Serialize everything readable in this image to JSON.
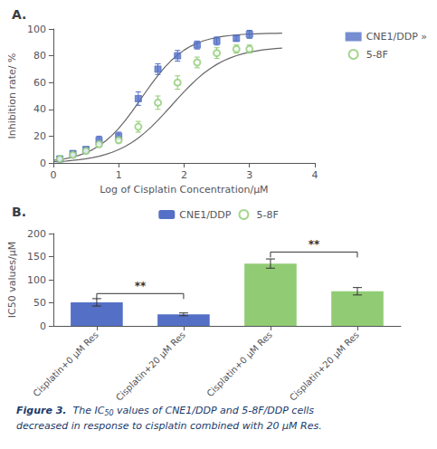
{
  "chart_data": [
    {
      "type": "scatter",
      "title": "A.",
      "xlabel": "Log of Cisplatin Concentration/μM",
      "ylabel": "Inhibition rate/ %",
      "xlim": [
        0,
        4
      ],
      "ylim": [
        0,
        100
      ],
      "xticks": [
        0,
        1,
        2,
        3,
        4
      ],
      "yticks": [
        0,
        20,
        40,
        60,
        80,
        100
      ],
      "grid": false,
      "legend": "right",
      "series": [
        {
          "name": "CNE1/DDP »",
          "marker": "square",
          "x": [
            0.1,
            0.3,
            0.5,
            0.7,
            1.0,
            1.3,
            1.6,
            1.9,
            2.2,
            2.5,
            2.8,
            3.0
          ],
          "values": [
            3,
            7,
            10,
            17,
            20,
            48,
            70,
            80,
            88,
            91,
            93,
            96
          ],
          "errors": [
            2,
            2,
            2,
            3,
            3,
            5,
            4,
            4,
            3,
            3,
            2,
            3
          ]
        },
        {
          "name": "5-8F",
          "marker": "open_circle",
          "x": [
            0.1,
            0.3,
            0.5,
            0.7,
            1.0,
            1.3,
            1.6,
            1.9,
            2.2,
            2.5,
            2.8,
            3.0
          ],
          "values": [
            3,
            6,
            9,
            14,
            17,
            27,
            45,
            60,
            75,
            82,
            85,
            85
          ],
          "errors": [
            1,
            2,
            2,
            2,
            2,
            4,
            5,
            5,
            4,
            4,
            3,
            3
          ]
        },
        {
          "type": "line",
          "x": [
            0,
            0.1,
            0.2,
            0.3,
            0.4,
            0.5,
            0.6,
            0.7,
            0.8,
            0.9,
            1.0,
            1.1,
            1.2,
            1.3,
            1.4,
            1.5,
            1.6,
            1.7,
            1.8,
            1.9,
            2.0,
            2.1,
            2.2,
            2.3,
            2.4,
            2.5,
            2.6,
            2.7,
            2.8,
            2.9,
            3.0,
            3.1,
            3.2,
            3.3,
            3.4,
            3.5
          ],
          "values": [
            1.9,
            2.52,
            3.34,
            4.41,
            5.8,
            7.6,
            9.9,
            12.79,
            16.36,
            20.69,
            25.8,
            31.65,
            38.11,
            44.99,
            52.01,
            58.89,
            65.35,
            71.2,
            76.31,
            80.64,
            84.21,
            87.1,
            89.4,
            91.2,
            92.59,
            93.66,
            94.48,
            95.1,
            95.57,
            95.93,
            96.2,
            96.4,
            96.55,
            96.66,
            96.75,
            96.81
          ]
        },
        {
          "type": "line",
          "x": [
            0,
            0.1,
            0.2,
            0.3,
            0.4,
            0.5,
            0.6,
            0.7,
            0.8,
            0.9,
            1.0,
            1.1,
            1.2,
            1.3,
            1.4,
            1.5,
            1.6,
            1.7,
            1.8,
            1.9,
            2.0,
            2.1,
            2.2,
            2.3,
            2.4,
            2.5,
            2.6,
            2.7,
            2.8,
            2.9,
            3.0,
            3.1,
            3.2,
            3.3,
            3.4,
            3.5
          ],
          "values": [
            0.91,
            1.16,
            1.49,
            1.9,
            2.43,
            3.09,
            3.93,
            4.99,
            6.3,
            7.93,
            9.92,
            12.34,
            15.23,
            18.63,
            22.55,
            26.97,
            31.83,
            37.02,
            42.41,
            47.84,
            53.13,
            58.13,
            62.74,
            66.86,
            70.47,
            73.56,
            76.16,
            78.32,
            80.09,
            81.52,
            82.67,
            83.59,
            84.32,
            84.9,
            85.36,
            85.71
          ]
        }
      ]
    },
    {
      "type": "bar",
      "title": "B.",
      "ylabel": "IC50 values/μM",
      "categories": [
        "Cisplatin+0 μM Res",
        "Cisplatin+20 μM Res",
        "Cisplatin+0 μM Res",
        "Cisplatin+20 μM Res"
      ],
      "ylim": [
        0,
        200
      ],
      "yticks": [
        0,
        50,
        100,
        150,
        200
      ],
      "grid": false,
      "legend": "top",
      "series": [
        {
          "name": "CNE1/DDP",
          "values": [
            51,
            25,
            null,
            null
          ],
          "errors": [
            8,
            3,
            null,
            null
          ]
        },
        {
          "name": "5-8F",
          "values": [
            null,
            null,
            135,
            75
          ],
          "errors": [
            null,
            null,
            10,
            8
          ]
        }
      ],
      "annotations": [
        {
          "text": "**",
          "x": [
            0,
            1
          ],
          "y": 70
        },
        {
          "text": "**",
          "x": [
            2,
            3
          ],
          "y": 160
        }
      ],
      "caption": {
        "color": "#1a3a6b",
        "lines": [
          [
            {
              "text": "Figure 3.",
              "bold": true
            },
            {
              "text": "  The IC"
            },
            {
              "text": "50",
              "subscript": true
            },
            {
              "text": " values of CNE1/DDP and 5-8F/DDP cells"
            }
          ],
          [
            {
              "text": "decreased in response to cisplatin combined with 20 μM Res."
            }
          ]
        ]
      }
    }
  ]
}
